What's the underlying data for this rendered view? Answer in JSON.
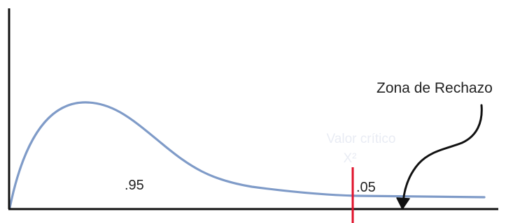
{
  "diagram": {
    "title": "",
    "curve_color": "#7f9bc8",
    "critical_line_color": "#e0122b",
    "axis_color": "#111111",
    "labels": {
      "acceptance_area": ".95",
      "rejection_area": ".05",
      "rejection_zone": "Zona de Rechazo",
      "critical_value_line1": "Valor crítico",
      "critical_value_line2": "X²"
    }
  }
}
